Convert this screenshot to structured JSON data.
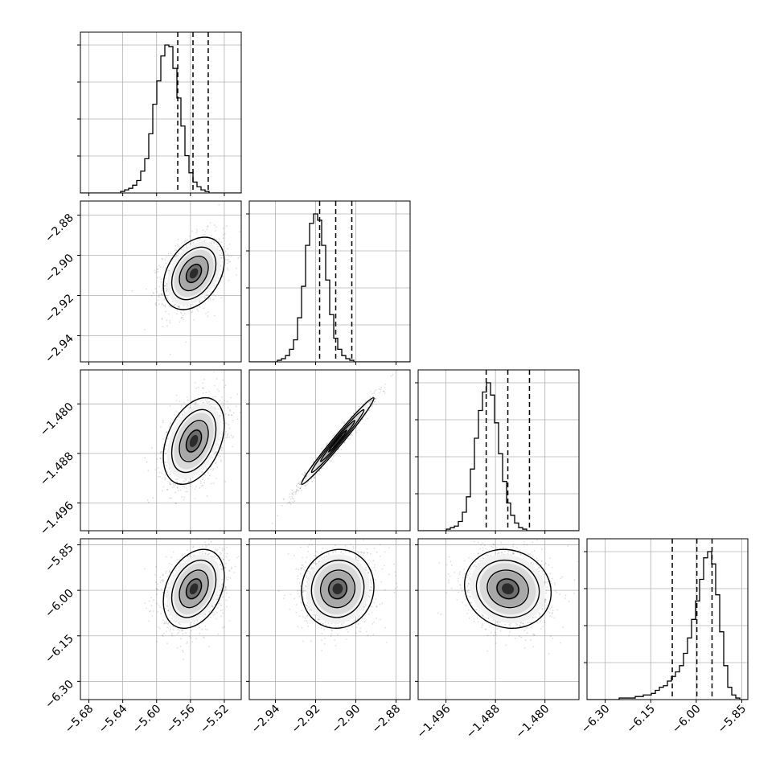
{
  "chart_data": {
    "type": "corner",
    "parameters": 4,
    "grid": true,
    "quantiles_shown": true,
    "axes": [
      {
        "index": 0,
        "range": [
          -5.69,
          -5.5
        ],
        "ticks": [
          -5.68,
          -5.64,
          -5.6,
          -5.56,
          -5.52
        ],
        "tick_labels": [
          "−5.68",
          "−5.64",
          "−5.60",
          "−5.56",
          "−5.52"
        ]
      },
      {
        "index": 1,
        "range": [
          -2.953,
          -2.873
        ],
        "ticks": [
          -2.94,
          -2.92,
          -2.9,
          -2.88
        ],
        "tick_labels": [
          "−2.94",
          "−2.92",
          "−2.90",
          "−2.88"
        ]
      },
      {
        "index": 2,
        "range": [
          -1.5005,
          -1.4745
        ],
        "ticks": [
          -1.496,
          -1.488,
          -1.48
        ],
        "tick_labels": [
          "−1.496",
          "−1.488",
          "−1.480"
        ]
      },
      {
        "index": 3,
        "range": [
          -6.36,
          -5.83
        ],
        "ticks": [
          -6.3,
          -6.15,
          -6.0,
          -5.85
        ],
        "tick_labels": [
          "−6.30",
          "−6.15",
          "−6.00",
          "−5.85"
        ]
      }
    ],
    "histograms": [
      {
        "param": 0,
        "edges_range": [
          -5.69,
          -5.5
        ],
        "counts": [
          0,
          0,
          0,
          0,
          0,
          0,
          0,
          0,
          0,
          0,
          1,
          2,
          3,
          5,
          8,
          14,
          22,
          38,
          57,
          72,
          88,
          95,
          94,
          80,
          61,
          43,
          24,
          13,
          7,
          4,
          2,
          1,
          0,
          0,
          0,
          0,
          0,
          0,
          0,
          0
        ],
        "quantiles": [
          -5.575,
          -5.557,
          -5.539
        ]
      },
      {
        "param": 1,
        "edges_range": [
          -2.953,
          -2.873
        ],
        "counts": [
          0,
          0,
          0,
          0,
          0,
          0,
          0,
          1,
          2,
          4,
          8,
          14,
          28,
          48,
          74,
          88,
          94,
          90,
          74,
          52,
          30,
          15,
          8,
          4,
          2,
          1,
          0,
          0,
          0,
          0,
          0,
          0,
          0,
          0,
          0,
          0,
          0,
          0,
          0,
          0
        ],
        "quantiles": [
          -2.918,
          -2.91,
          -2.902
        ]
      },
      {
        "param": 2,
        "edges_range": [
          -1.5005,
          -1.4745
        ],
        "counts": [
          0,
          0,
          0,
          0,
          0,
          0,
          0,
          1,
          2,
          3,
          6,
          12,
          22,
          40,
          60,
          78,
          90,
          96,
          88,
          70,
          50,
          32,
          18,
          10,
          5,
          2,
          1,
          0,
          0,
          0,
          0,
          0,
          0,
          0,
          0,
          0,
          0,
          0,
          0,
          0
        ],
        "quantiles": [
          -1.4895,
          -1.486,
          -1.4825
        ]
      },
      {
        "param": 3,
        "edges_range": [
          -6.36,
          -5.83
        ],
        "counts": [
          0,
          0,
          0,
          0,
          0,
          0,
          0,
          0,
          1,
          1,
          1,
          1,
          2,
          2,
          3,
          3,
          4,
          6,
          8,
          9,
          12,
          15,
          18,
          22,
          30,
          40,
          52,
          64,
          78,
          92,
          96,
          88,
          68,
          44,
          22,
          8,
          3,
          1,
          0,
          0
        ],
        "quantiles": [
          -6.079,
          -5.998,
          -5.948
        ]
      }
    ],
    "scatter_panels": [
      {
        "x": 0,
        "y": 1,
        "center": [
          -5.556,
          -2.909
        ],
        "sigma": [
          0.018,
          0.009
        ],
        "rho": 0.35
      },
      {
        "x": 0,
        "y": 2,
        "center": [
          -5.556,
          -1.486
        ],
        "sigma": [
          0.018,
          0.0035
        ],
        "rho": 0.38
      },
      {
        "x": 1,
        "y": 2,
        "center": [
          -2.909,
          -1.486
        ],
        "sigma": [
          0.009,
          0.0035
        ],
        "rho": 0.985
      },
      {
        "x": 0,
        "y": 3,
        "center": [
          -5.556,
          -5.995
        ],
        "sigma": [
          0.018,
          0.065
        ],
        "rho": 0.32
      },
      {
        "x": 1,
        "y": 3,
        "center": [
          -2.909,
          -5.995
        ],
        "sigma": [
          0.009,
          0.065
        ],
        "rho": 0.05
      },
      {
        "x": 2,
        "y": 3,
        "center": [
          -1.486,
          -5.995
        ],
        "sigma": [
          0.0035,
          0.065
        ],
        "rho": -0.1
      }
    ]
  }
}
